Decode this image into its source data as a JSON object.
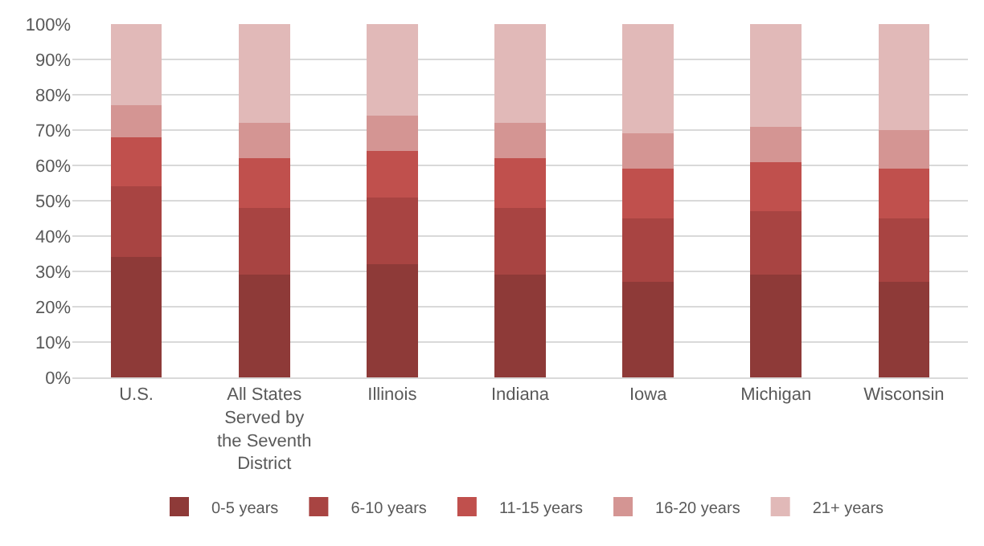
{
  "chart_data": {
    "type": "bar",
    "stacked": true,
    "categories": [
      "U.S.",
      "All States Served by the Seventh District",
      "Illinois",
      "Indiana",
      "Iowa",
      "Michigan",
      "Wisconsin"
    ],
    "series": [
      {
        "name": "0-5 years",
        "color": "#8e3a38",
        "values": [
          34,
          29,
          32,
          29,
          27,
          29,
          27
        ]
      },
      {
        "name": "6-10 years",
        "color": "#a84442",
        "values": [
          20,
          19,
          19,
          19,
          18,
          18,
          18
        ]
      },
      {
        "name": "11-15 years",
        "color": "#c0504d",
        "values": [
          14,
          14,
          13,
          14,
          14,
          14,
          14
        ]
      },
      {
        "name": "16-20 years",
        "color": "#d49593",
        "values": [
          9,
          10,
          10,
          10,
          10,
          10,
          11
        ]
      },
      {
        "name": "21+ years",
        "color": "#e1b9b8",
        "values": [
          23,
          28,
          26,
          28,
          31,
          29,
          30
        ]
      }
    ],
    "ylim": [
      0,
      100
    ],
    "yticks": [
      {
        "value": 0,
        "label": "0%"
      },
      {
        "value": 10,
        "label": "10%"
      },
      {
        "value": 20,
        "label": "20%"
      },
      {
        "value": 30,
        "label": "30%"
      },
      {
        "value": 40,
        "label": "40%"
      },
      {
        "value": 50,
        "label": "50%"
      },
      {
        "value": 60,
        "label": "60%"
      },
      {
        "value": 70,
        "label": "70%"
      },
      {
        "value": 80,
        "label": "80%"
      },
      {
        "value": 90,
        "label": "90%"
      },
      {
        "value": 100,
        "label": "100%"
      }
    ],
    "grid": "y",
    "legend": "bottom"
  }
}
